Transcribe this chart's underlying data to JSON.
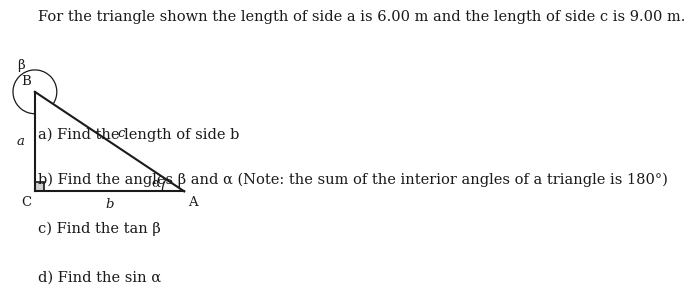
{
  "title_text": "For the triangle shown the length of side a is 6.00 m and the length of side c is 9.00 m.",
  "title_fontsize": 10.5,
  "background_color": "#ffffff",
  "text_color": "#1a1a1a",
  "line_color": "#1a1a1a",
  "line_width": 1.5,
  "right_angle_fill": "#d0d0d0",
  "questions": [
    "a) Find the length of side b",
    "b) Find the angles β and α (Note: the sum of the interior angles of a triangle is 180°)",
    "c) Find the tan β",
    "d) Find the sin α"
  ],
  "question_fontsize": 10.5,
  "tri_C": [
    0.0,
    0.0
  ],
  "tri_B": [
    0.0,
    1.0
  ],
  "tri_A": [
    1.5,
    0.0
  ]
}
